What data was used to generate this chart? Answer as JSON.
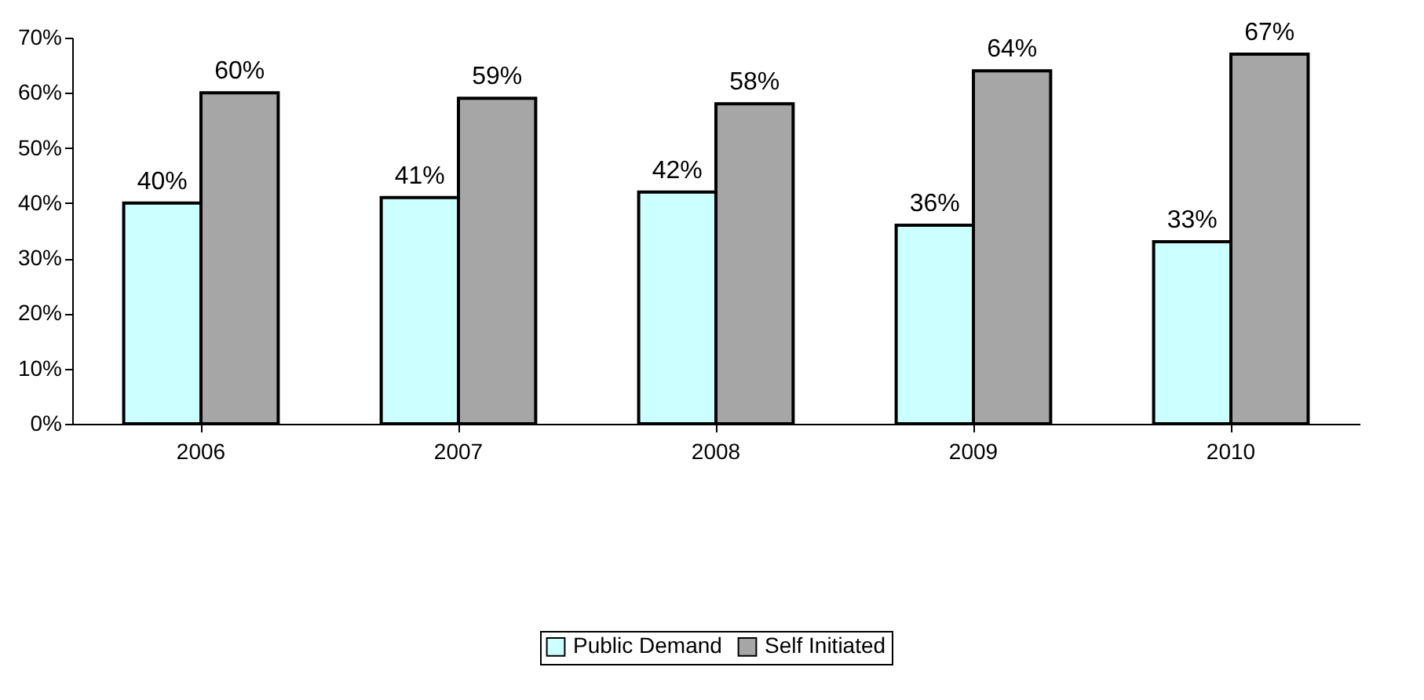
{
  "chart_data": {
    "type": "bar",
    "categories": [
      "2006",
      "2007",
      "2008",
      "2009",
      "2010"
    ],
    "series": [
      {
        "name": "Public Demand",
        "color": "#ccffff",
        "values": [
          40,
          41,
          42,
          36,
          33
        ],
        "value_labels": [
          "40%",
          "41%",
          "42%",
          "36%",
          "33%"
        ]
      },
      {
        "name": "Self Initiated",
        "color": "#a6a6a6",
        "values": [
          60,
          59,
          58,
          64,
          67
        ],
        "value_labels": [
          "60%",
          "59%",
          "58%",
          "64%",
          "67%"
        ]
      }
    ],
    "ylim": [
      0,
      70
    ],
    "yticks": [
      {
        "value": 0,
        "label": "0%"
      },
      {
        "value": 10,
        "label": "10%"
      },
      {
        "value": 20,
        "label": "20%"
      },
      {
        "value": 30,
        "label": "30%"
      },
      {
        "value": 40,
        "label": "40%"
      },
      {
        "value": 50,
        "label": "50%"
      },
      {
        "value": 60,
        "label": "60%"
      },
      {
        "value": 70,
        "label": "70%"
      }
    ],
    "grid": false,
    "legend": "bottom"
  }
}
